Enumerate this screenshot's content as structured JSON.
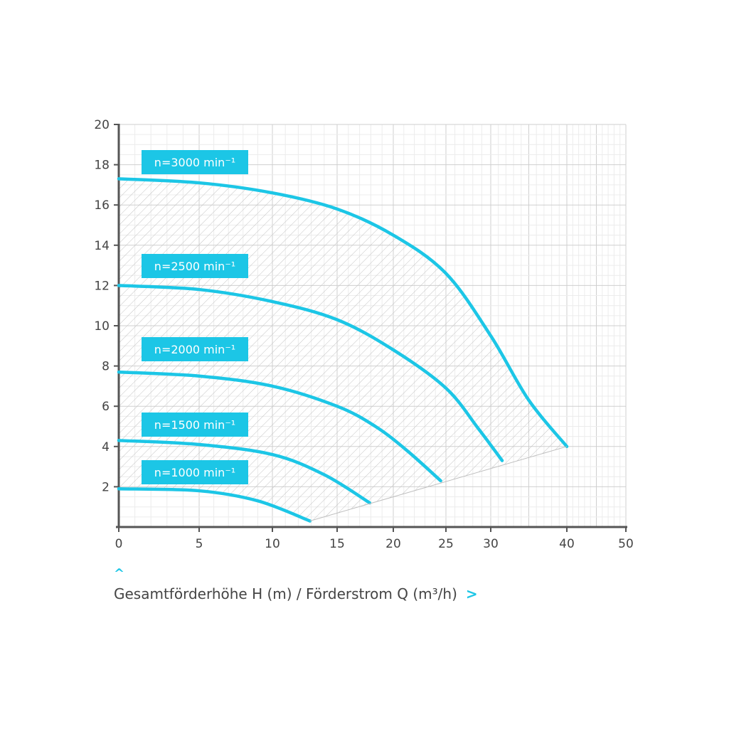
{
  "chart_data": {
    "type": "line",
    "title": "",
    "xlabel": "",
    "ylabel": "",
    "xlim": [
      0,
      50
    ],
    "ylim": [
      0,
      20
    ],
    "x_ticks": [
      "0",
      "5",
      "10",
      "15",
      "20",
      "25",
      "30",
      "40",
      "50"
    ],
    "y_ticks": [
      "2",
      "4",
      "6",
      "8",
      "10",
      "12",
      "14",
      "16",
      "18",
      "20"
    ],
    "grid": true,
    "series": [
      {
        "name": "n=3000 min⁻¹",
        "points": [
          [
            0,
            17.3
          ],
          [
            5,
            17.1
          ],
          [
            10,
            16.6
          ],
          [
            15,
            15.8
          ],
          [
            20,
            14.5
          ],
          [
            25,
            12.6
          ],
          [
            30,
            9.5
          ],
          [
            35,
            6.3
          ],
          [
            40,
            4.0
          ]
        ]
      },
      {
        "name": "n=2500 min⁻¹",
        "points": [
          [
            0,
            12.0
          ],
          [
            5,
            11.8
          ],
          [
            10,
            11.2
          ],
          [
            15,
            10.3
          ],
          [
            20,
            8.8
          ],
          [
            25,
            6.9
          ],
          [
            28.6,
            4.9
          ],
          [
            31.5,
            3.3
          ]
        ]
      },
      {
        "name": "n=2000 min⁻¹",
        "points": [
          [
            0,
            7.7
          ],
          [
            5,
            7.5
          ],
          [
            10,
            7.0
          ],
          [
            15,
            6.0
          ],
          [
            18.4,
            5.0
          ],
          [
            21.3,
            3.8
          ],
          [
            24.5,
            2.3
          ]
        ]
      },
      {
        "name": "n=1500 min⁻¹",
        "points": [
          [
            0,
            4.3
          ],
          [
            5,
            4.1
          ],
          [
            10,
            3.6
          ],
          [
            14,
            2.6
          ],
          [
            17.9,
            1.2
          ]
        ]
      },
      {
        "name": "n=1000 min⁻¹",
        "points": [
          [
            0,
            1.9
          ],
          [
            5,
            1.8
          ],
          [
            9,
            1.3
          ],
          [
            12.9,
            0.3
          ]
        ]
      }
    ],
    "operating_area_lower_bound": [
      [
        12.9,
        0.3
      ],
      [
        40,
        4.0
      ]
    ],
    "colors": {
      "curve": "#1cc6e6",
      "grid": "#d6d6d6",
      "axis": "#555555",
      "hatch": "#bdbdbd"
    }
  },
  "caption": {
    "text": "Gesamtförderhöhe H (m) / Förderstrom Q (m³/h)",
    "chevron_up": "^",
    "chevron_right": ">"
  }
}
